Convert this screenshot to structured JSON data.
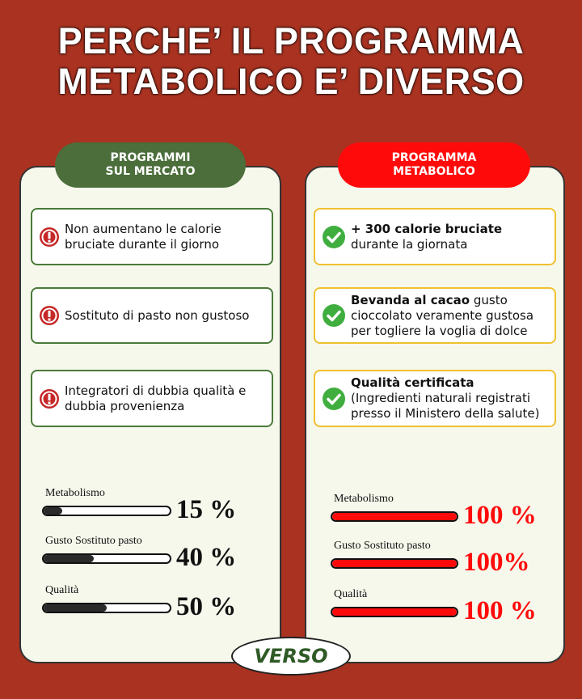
{
  "header": {
    "title_lines": [
      "PERCHE’ IL PROGRAMMA",
      "METABOLICO E’ DIVERSO"
    ]
  },
  "left": {
    "heading_lines": [
      "PROGRAMMI",
      "SUL MERCATO"
    ],
    "items": [
      {
        "bold": "",
        "text": "Non aumentano le calorie bruciate durante il giorno"
      },
      {
        "bold": "",
        "text": "Sostituto di pasto non gustoso"
      },
      {
        "bold": "",
        "text": "Integratori di dubbia qualità e dubbia provenienza"
      }
    ],
    "bars": [
      {
        "name": "Metabolismo",
        "value": 15,
        "label": "15 %"
      },
      {
        "name": "Gusto Sostituto pasto",
        "value": 40,
        "label": "40 %"
      },
      {
        "name": "Qualità",
        "value": 50,
        "label": "50 %"
      }
    ]
  },
  "right": {
    "heading_lines": [
      "PROGRAMMA",
      "METABOLICO"
    ],
    "items": [
      {
        "bold": "+ 300 calorie bruciate",
        "text": "durante la giornata"
      },
      {
        "bold": "Bevanda al cacao",
        "text": "gusto cioccolato veramente gustosa per togliere la voglia di dolce"
      },
      {
        "bold": "Qualità certificata",
        "text": "(Ingredienti naturali registrati presso il Ministero della salute)"
      }
    ],
    "bars": [
      {
        "name": "Metabolismo",
        "value": 100,
        "label": "100 %"
      },
      {
        "name": "Gusto Sostituto pasto",
        "value": 100,
        "label": "100%"
      },
      {
        "name": "Qualità",
        "value": 100,
        "label": "100 %"
      }
    ]
  },
  "footer": {
    "brand": "VERSO"
  }
}
